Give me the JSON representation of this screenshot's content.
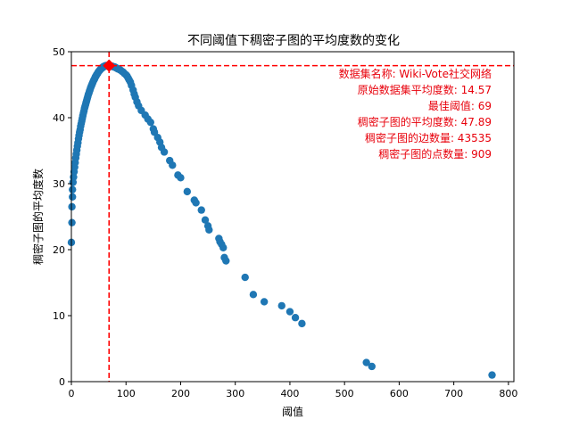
{
  "chart_data": {
    "type": "scatter",
    "title": "不同阈值下稠密子图的平均度数的变化",
    "xlabel": "阈值",
    "ylabel": "稠密子图的平均度数",
    "xlim": [
      0,
      810
    ],
    "ylim": [
      0,
      50
    ],
    "xticks": [
      0,
      100,
      200,
      300,
      400,
      500,
      600,
      700,
      800
    ],
    "yticks": [
      0,
      10,
      20,
      30,
      40,
      50
    ],
    "grid": false,
    "point_color": "#1f77b4",
    "highlight_color": "#ff0000",
    "best_point": {
      "x": 69,
      "y": 47.89
    },
    "annotations": [
      "数据集名称: Wiki-Vote社交网络",
      "原始数据集平均度数: 14.57",
      "最佳阈值: 69",
      "稠密子图的平均度数: 47.89",
      "稠密子图的边数量: 43535",
      "稠密子图的点数量: 909"
    ],
    "points": [
      [
        0,
        21.1
      ],
      [
        1,
        24.1
      ],
      [
        1,
        26.5
      ],
      [
        2,
        28.0
      ],
      [
        2,
        29.1
      ],
      [
        3,
        30.2
      ],
      [
        4,
        31.0
      ],
      [
        5,
        31.8
      ],
      [
        6,
        32.5
      ],
      [
        7,
        33.2
      ],
      [
        8,
        33.9
      ],
      [
        9,
        34.5
      ],
      [
        10,
        35.1
      ],
      [
        11,
        35.7
      ],
      [
        12,
        36.2
      ],
      [
        13,
        36.8
      ],
      [
        14,
        37.3
      ],
      [
        15,
        37.8
      ],
      [
        16,
        38.2
      ],
      [
        17,
        38.7
      ],
      [
        18,
        39.1
      ],
      [
        19,
        39.5
      ],
      [
        20,
        39.9
      ],
      [
        21,
        40.3
      ],
      [
        22,
        40.7
      ],
      [
        23,
        41.0
      ],
      [
        24,
        41.4
      ],
      [
        25,
        41.7
      ],
      [
        26,
        42.0
      ],
      [
        27,
        42.3
      ],
      [
        28,
        42.6
      ],
      [
        29,
        42.9
      ],
      [
        30,
        43.2
      ],
      [
        31,
        43.5
      ],
      [
        32,
        43.7
      ],
      [
        33,
        44.0
      ],
      [
        34,
        44.2
      ],
      [
        35,
        44.5
      ],
      [
        36,
        44.7
      ],
      [
        37,
        44.9
      ],
      [
        38,
        45.1
      ],
      [
        39,
        45.3
      ],
      [
        40,
        45.5
      ],
      [
        41,
        45.7
      ],
      [
        42,
        45.8
      ],
      [
        43,
        46.0
      ],
      [
        44,
        46.2
      ],
      [
        45,
        46.3
      ],
      [
        46,
        46.5
      ],
      [
        47,
        46.6
      ],
      [
        48,
        46.7
      ],
      [
        49,
        46.9
      ],
      [
        50,
        47.0
      ],
      [
        51,
        47.1
      ],
      [
        52,
        47.2
      ],
      [
        53,
        47.3
      ],
      [
        54,
        47.4
      ],
      [
        55,
        47.5
      ],
      [
        56,
        47.5
      ],
      [
        57,
        47.6
      ],
      [
        58,
        47.7
      ],
      [
        59,
        47.7
      ],
      [
        60,
        47.8
      ],
      [
        61,
        47.8
      ],
      [
        62,
        47.8
      ],
      [
        63,
        47.9
      ],
      [
        64,
        47.9
      ],
      [
        65,
        47.9
      ],
      [
        66,
        47.9
      ],
      [
        67,
        47.9
      ],
      [
        68,
        47.9
      ],
      [
        70,
        47.9
      ],
      [
        71,
        47.9
      ],
      [
        73,
        47.8
      ],
      [
        75,
        47.8
      ],
      [
        77,
        47.7
      ],
      [
        79,
        47.7
      ],
      [
        81,
        47.6
      ],
      [
        83,
        47.5
      ],
      [
        85,
        47.4
      ],
      [
        88,
        47.3
      ],
      [
        90,
        47.2
      ],
      [
        93,
        47.0
      ],
      [
        95,
        46.9
      ],
      [
        97,
        46.7
      ],
      [
        100,
        46.5
      ],
      [
        102,
        46.3
      ],
      [
        104,
        46.0
      ],
      [
        106,
        45.7
      ],
      [
        108,
        45.4
      ],
      [
        110,
        44.9
      ],
      [
        113,
        44.2
      ],
      [
        115,
        43.6
      ],
      [
        117,
        43.1
      ],
      [
        120,
        42.4
      ],
      [
        123,
        41.8
      ],
      [
        128,
        41.1
      ],
      [
        135,
        40.4
      ],
      [
        140,
        39.8
      ],
      [
        145,
        39.3
      ],
      [
        150,
        38.3
      ],
      [
        152,
        37.8
      ],
      [
        158,
        37.0
      ],
      [
        162,
        36.3
      ],
      [
        165,
        35.5
      ],
      [
        170,
        34.8
      ],
      [
        180,
        33.5
      ],
      [
        185,
        32.8
      ],
      [
        195,
        31.3
      ],
      [
        200,
        30.9
      ],
      [
        212,
        28.8
      ],
      [
        225,
        27.5
      ],
      [
        228,
        27.1
      ],
      [
        238,
        26.0
      ],
      [
        245,
        24.5
      ],
      [
        250,
        23.6
      ],
      [
        252,
        23.0
      ],
      [
        270,
        21.7
      ],
      [
        272,
        21.2
      ],
      [
        275,
        20.8
      ],
      [
        278,
        20.3
      ],
      [
        280,
        18.8
      ],
      [
        283,
        18.3
      ],
      [
        318,
        15.8
      ],
      [
        333,
        13.2
      ],
      [
        353,
        12.1
      ],
      [
        385,
        11.5
      ],
      [
        400,
        10.6
      ],
      [
        410,
        9.7
      ],
      [
        422,
        8.8
      ],
      [
        540,
        2.9
      ],
      [
        550,
        2.3
      ],
      [
        770,
        1.0
      ]
    ]
  }
}
